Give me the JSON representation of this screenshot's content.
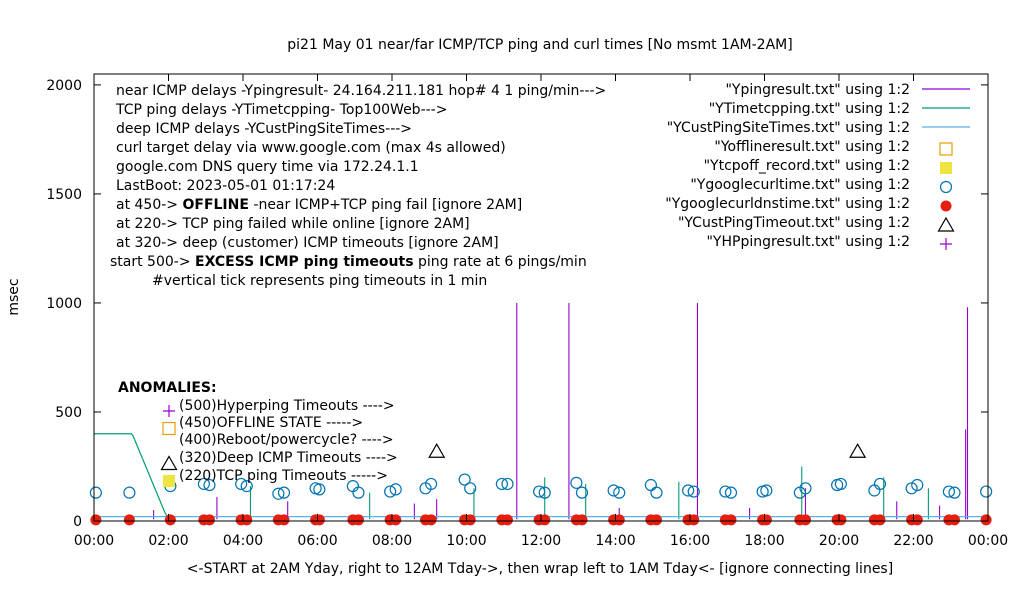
{
  "chart_data": {
    "type": "line",
    "title": "pi21 May 01  near/far ICMP/TCP ping and curl times [No msmt 1AM-2AM]",
    "xlabel": "<-START at 2AM Yday, right to 12AM Tday->, then wrap left to 1AM Tday<- [ignore connecting lines]",
    "ylabel": "msec",
    "xlim": [
      0,
      24
    ],
    "ylim": [
      0,
      2050
    ],
    "x_ticks": [
      "00:00",
      "02:00",
      "04:00",
      "06:00",
      "08:00",
      "10:00",
      "12:00",
      "14:00",
      "16:00",
      "18:00",
      "20:00",
      "22:00",
      "00:00"
    ],
    "y_ticks": [
      "0",
      "500",
      "1000",
      "1500",
      "2000"
    ],
    "y_tick_values": [
      0,
      500,
      1000,
      1500,
      2000
    ],
    "grid": false,
    "legend_placement": "top-right",
    "info_lines": [
      "near ICMP delays -Ypingresult- 24.164.211.181 hop# 4 1 ping/min--->",
      "TCP ping delays -YTimetcpping- Top100Web--->",
      "deep ICMP delays -YCustPingSiteTimes--->",
      "curl target delay via www.google.com (max 4s allowed)",
      "google.com DNS query time via 172.24.1.1",
      "LastBoot: 2023-05-01 01:17:24"
    ],
    "status_lines": [
      {
        "prefix": "at 450->",
        "bold": "OFFLINE",
        "rest": "-near ICMP+TCP ping fail [ignore 2AM]"
      },
      {
        "prefix": "at 220-> TCP ping failed while online [ignore 2AM]",
        "bold": "",
        "rest": ""
      },
      {
        "prefix": "at 320-> deep (customer) ICMP timeouts [ignore 2AM]",
        "bold": "",
        "rest": ""
      },
      {
        "prefix": "start 500->",
        "bold": "EXCESS ICMP ping timeouts",
        "rest": "ping rate at 6 pings/min"
      }
    ],
    "tick_note": "#vertical tick represents ping timeouts in 1 min",
    "anomalies_title": "ANOMALIES:",
    "anomalies": [
      {
        "label": "(500)Hyperping Timeouts ---->",
        "y": 500,
        "marker": "plus",
        "color": "#9400d3"
      },
      {
        "label": "(450)OFFLINE STATE ----->",
        "y": 450,
        "marker": "square-open",
        "color": "#e69f00"
      },
      {
        "label": "(400)Reboot/powercycle? ---->",
        "y": 400,
        "marker": "none",
        "color": "#000000"
      },
      {
        "label": "(320)Deep ICMP Timeouts ---->",
        "y": 320,
        "marker": "triangle",
        "color": "#000000"
      },
      {
        "label": "(220)TCP ping Timeouts ----->",
        "y": 220,
        "marker": "square-filled",
        "color": "#f0e442"
      }
    ],
    "series": [
      {
        "name": "\"Ypingresult.txt\" using 1:2",
        "color": "#9400d3",
        "kind": "line",
        "spikes": [
          [
            1.6,
            50
          ],
          [
            3.3,
            110
          ],
          [
            5.2,
            90
          ],
          [
            8.6,
            80
          ],
          [
            11.35,
            1000
          ],
          [
            12.75,
            1000
          ],
          [
            16.2,
            1000
          ],
          [
            19.1,
            150
          ],
          [
            21.55,
            90
          ],
          [
            23.45,
            980
          ],
          [
            23.4,
            420
          ],
          [
            22.7,
            70
          ],
          [
            14.1,
            60
          ],
          [
            9.2,
            100
          ],
          [
            17.6,
            60
          ]
        ]
      },
      {
        "name": "\"YTimetcpping.txt\" using 1:2",
        "color": "#009e73",
        "kind": "line",
        "values": [
          [
            0.0,
            400
          ],
          [
            1.0,
            400
          ],
          [
            1.05,
            390
          ],
          [
            1.9,
            40
          ],
          [
            2.0,
            10
          ]
        ],
        "spikes": [
          [
            19.0,
            250
          ],
          [
            12.1,
            200
          ],
          [
            4.2,
            160
          ],
          [
            13.2,
            170
          ],
          [
            10.2,
            150
          ],
          [
            15.7,
            180
          ],
          [
            7.4,
            130
          ],
          [
            21.2,
            200
          ],
          [
            22.4,
            150
          ]
        ]
      },
      {
        "name": "\"YCustPingSiteTimes.txt\" using 1:2",
        "color": "#56b4e9",
        "kind": "line",
        "values": [
          [
            0.0,
            20
          ],
          [
            24.0,
            20
          ]
        ]
      },
      {
        "name": "\"Yofflineresult.txt\" using 1:2",
        "color": "#e69f00",
        "kind": "square-open",
        "points": []
      },
      {
        "name": "\"Ytcpoff_record.txt\" using 1:2",
        "color": "#f0e442",
        "kind": "square-filled",
        "points": []
      },
      {
        "name": "\"Ygooglecurltime.txt\" using 1:2",
        "color": "#0072b2",
        "kind": "circle-open",
        "points": [
          [
            0.05,
            130
          ],
          [
            0.95,
            130
          ],
          [
            2.05,
            160
          ],
          [
            2.95,
            170
          ],
          [
            3.1,
            165
          ],
          [
            3.95,
            170
          ],
          [
            4.1,
            160
          ],
          [
            4.95,
            125
          ],
          [
            5.1,
            130
          ],
          [
            5.95,
            150
          ],
          [
            6.05,
            145
          ],
          [
            6.95,
            160
          ],
          [
            7.1,
            130
          ],
          [
            7.95,
            135
          ],
          [
            8.1,
            145
          ],
          [
            8.9,
            150
          ],
          [
            9.05,
            170
          ],
          [
            9.95,
            190
          ],
          [
            10.1,
            150
          ],
          [
            10.95,
            170
          ],
          [
            11.1,
            170
          ],
          [
            11.95,
            135
          ],
          [
            12.1,
            130
          ],
          [
            12.95,
            175
          ],
          [
            13.1,
            130
          ],
          [
            13.95,
            140
          ],
          [
            14.1,
            130
          ],
          [
            14.95,
            165
          ],
          [
            15.1,
            130
          ],
          [
            15.95,
            140
          ],
          [
            16.1,
            135
          ],
          [
            16.95,
            135
          ],
          [
            17.1,
            130
          ],
          [
            17.95,
            135
          ],
          [
            18.05,
            140
          ],
          [
            18.95,
            130
          ],
          [
            19.1,
            150
          ],
          [
            19.95,
            165
          ],
          [
            20.05,
            170
          ],
          [
            20.95,
            140
          ],
          [
            21.1,
            170
          ],
          [
            21.95,
            150
          ],
          [
            22.1,
            165
          ],
          [
            22.95,
            135
          ],
          [
            23.1,
            130
          ],
          [
            23.95,
            135
          ]
        ]
      },
      {
        "name": "\"Ygooglecurldnstime.txt\" using 1:2",
        "color": "#e51e10",
        "kind": "circle-filled",
        "points": [
          [
            0.05,
            5
          ],
          [
            0.95,
            5
          ],
          [
            2.05,
            5
          ],
          [
            2.95,
            5
          ],
          [
            3.1,
            5
          ],
          [
            3.95,
            5
          ],
          [
            4.1,
            5
          ],
          [
            4.95,
            5
          ],
          [
            5.1,
            5
          ],
          [
            5.95,
            5
          ],
          [
            6.05,
            5
          ],
          [
            6.95,
            5
          ],
          [
            7.1,
            5
          ],
          [
            7.95,
            5
          ],
          [
            8.1,
            5
          ],
          [
            8.9,
            5
          ],
          [
            9.05,
            5
          ],
          [
            9.95,
            5
          ],
          [
            10.1,
            5
          ],
          [
            10.95,
            5
          ],
          [
            11.1,
            5
          ],
          [
            11.95,
            5
          ],
          [
            12.1,
            5
          ],
          [
            12.95,
            5
          ],
          [
            13.1,
            5
          ],
          [
            13.95,
            5
          ],
          [
            14.1,
            5
          ],
          [
            14.95,
            5
          ],
          [
            15.1,
            5
          ],
          [
            15.95,
            5
          ],
          [
            16.1,
            5
          ],
          [
            16.95,
            5
          ],
          [
            17.1,
            5
          ],
          [
            17.95,
            5
          ],
          [
            18.05,
            5
          ],
          [
            18.95,
            5
          ],
          [
            19.1,
            5
          ],
          [
            19.95,
            5
          ],
          [
            20.05,
            5
          ],
          [
            20.95,
            5
          ],
          [
            21.1,
            5
          ],
          [
            21.95,
            5
          ],
          [
            22.1,
            5
          ],
          [
            22.95,
            5
          ],
          [
            23.1,
            5
          ],
          [
            23.95,
            5
          ]
        ]
      },
      {
        "name": "\"YCustPingTimeout.txt\" using 1:2",
        "color": "#000000",
        "kind": "triangle",
        "points": [
          [
            9.2,
            320
          ],
          [
            20.5,
            320
          ]
        ]
      },
      {
        "name": "\"YHPpingresult.txt\" using 1:2",
        "color": "#9400d3",
        "kind": "plus",
        "points": []
      }
    ]
  }
}
